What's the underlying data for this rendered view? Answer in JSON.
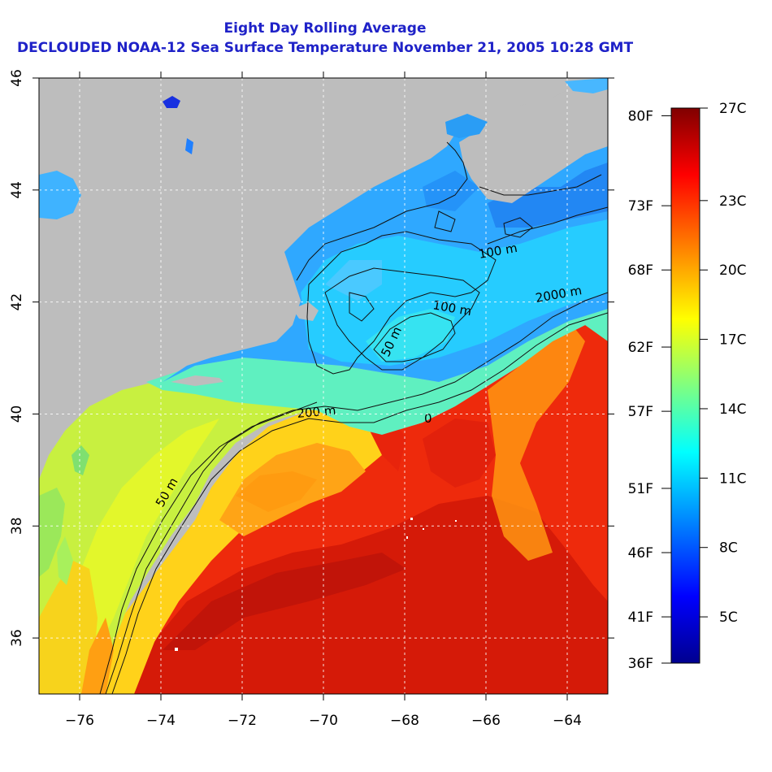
{
  "title": {
    "line1": "Eight Day Rolling Average",
    "line2": "DECLOUDED NOAA-12 Sea Surface Temperature November 21, 2005 10:28 GMT"
  },
  "map": {
    "lon_range": [
      -77,
      -63
    ],
    "lat_range": [
      35,
      46
    ],
    "x_ticks": [
      {
        "value": -76,
        "label": "−76"
      },
      {
        "value": -74,
        "label": "−74"
      },
      {
        "value": -72,
        "label": "−72"
      },
      {
        "value": -70,
        "label": "−70"
      },
      {
        "value": -68,
        "label": "−68"
      },
      {
        "value": -66,
        "label": "−66"
      },
      {
        "value": -64,
        "label": "−64"
      }
    ],
    "y_ticks": [
      {
        "value": 36,
        "label": "36"
      },
      {
        "value": 38,
        "label": "38"
      },
      {
        "value": 40,
        "label": "40"
      },
      {
        "value": 42,
        "label": "42"
      },
      {
        "value": 44,
        "label": "44"
      },
      {
        "value": 46,
        "label": "46"
      }
    ],
    "gridlines": true,
    "land_color": "#bdbdbd",
    "contour_labels": [
      "100 m",
      "2000 m",
      "100 m",
      "50 m",
      "200 m",
      "0",
      "50 m"
    ]
  },
  "colorbar": {
    "min_c": 3,
    "max_c": 27,
    "colors_cold_to_warm": [
      "#00008f",
      "#0000ff",
      "#0080ff",
      "#00ffff",
      "#80ff80",
      "#ffff00",
      "#ff8000",
      "#ff0000",
      "#800000"
    ],
    "celsius_labels": [
      "27C",
      "23C",
      "20C",
      "17C",
      "14C",
      "11C",
      "8C",
      "5C"
    ],
    "celsius_values": [
      27,
      23,
      20,
      17,
      14,
      11,
      8,
      5
    ],
    "fahrenheit_labels": [
      "80F",
      "73F",
      "68F",
      "62F",
      "57F",
      "51F",
      "46F",
      "41F",
      "36F"
    ],
    "fahrenheit_values": [
      80,
      73,
      68,
      62,
      57,
      51,
      46,
      41,
      36
    ]
  }
}
